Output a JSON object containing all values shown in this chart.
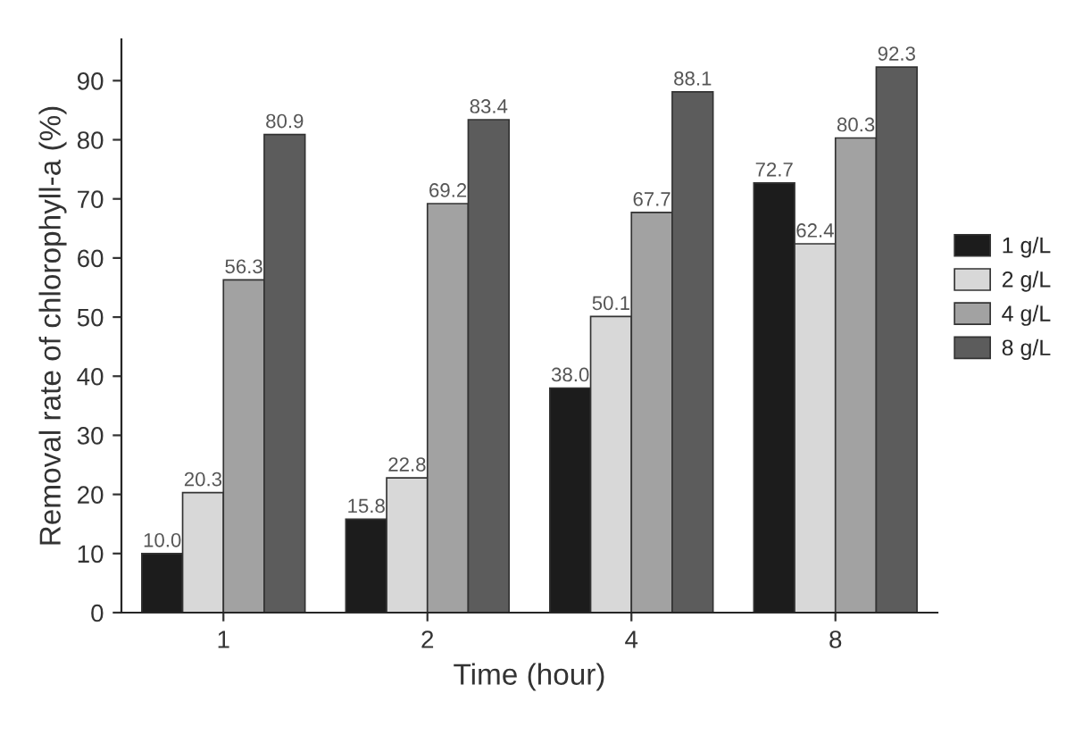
{
  "chart_data": {
    "type": "bar",
    "xlabel": "Time (hour)",
    "ylabel": "Removal rate of chlorophyll-a (%)",
    "categories": [
      "1",
      "2",
      "4",
      "8"
    ],
    "series": [
      {
        "name": "1 g/L",
        "color": "#1c1c1c",
        "values": [
          10.0,
          15.8,
          38.0,
          72.7
        ],
        "value_labels": [
          "10.0",
          "15.8",
          "38.0",
          "72.7"
        ]
      },
      {
        "name": "2 g/L",
        "color": "#d8d8d8",
        "values": [
          20.3,
          22.8,
          50.1,
          62.4
        ],
        "value_labels": [
          "20.3",
          "22.8",
          "50.1",
          "62.4"
        ]
      },
      {
        "name": "4 g/L",
        "color": "#a2a2a2",
        "values": [
          56.3,
          69.2,
          67.7,
          80.3
        ],
        "value_labels": [
          "56.3",
          "69.2",
          "67.7",
          "80.3"
        ]
      },
      {
        "name": "8 g/L",
        "color": "#5c5c5c",
        "values": [
          80.9,
          83.4,
          88.1,
          92.3
        ],
        "value_labels": [
          "80.9",
          "83.4",
          "88.1",
          "92.3"
        ]
      }
    ],
    "ylim": [
      0,
      97
    ],
    "yticks": [
      0,
      10,
      20,
      30,
      40,
      50,
      60,
      70,
      80,
      90
    ],
    "grid": false,
    "legend": "right"
  }
}
